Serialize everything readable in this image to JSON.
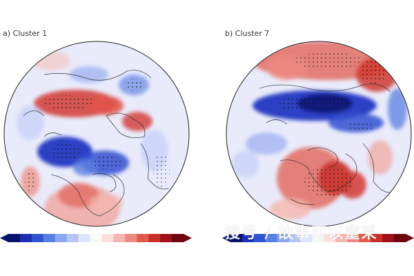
{
  "panels": [
    {
      "title": "a) Cluster 1"
    },
    {
      "title": "b) Cluster 7"
    }
  ],
  "colorbar": {
    "colors": [
      "#08126b",
      "#1b2fb0",
      "#2f54d2",
      "#5a7fe2",
      "#89a6ee",
      "#b5c6f5",
      "#dfe6fb",
      "#f8f8f8",
      "#fbe0dd",
      "#f5b6ae",
      "#ee8a7f",
      "#e25a4e",
      "#c9302a",
      "#a0121a",
      "#6e0610"
    ]
  },
  "palette": {
    "background": "#e9ebfb",
    "strong_red": "#d23a33",
    "light_red": "#f0a9a2",
    "strong_blue": "#1a2fbf",
    "light_blue": "#9eb0f0",
    "coast": "#2b2b2b"
  },
  "watermark": "搜号 / 故事可以童采"
}
